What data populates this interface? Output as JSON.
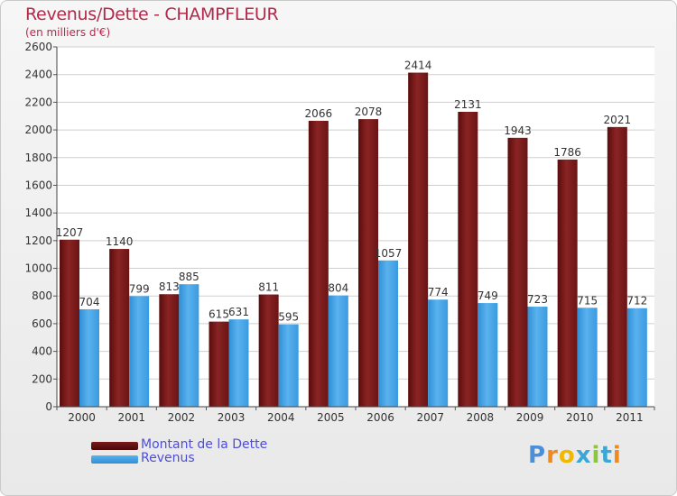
{
  "title": "Revenus/Dette - CHAMPFLEUR",
  "subtitle": "(en milliers d'€)",
  "legend": {
    "debt_label": "Montant de la Dette",
    "revenue_label": "Revenus"
  },
  "logo": "Proxiti",
  "colors": {
    "debt": "#7a1a1a",
    "revenue": "#3f9ee0",
    "title": "#b22a4a",
    "legend_text": "#4d4dd8"
  },
  "chart_data": {
    "type": "bar",
    "title": "Revenus/Dette - CHAMPFLEUR",
    "ylabel": "(en milliers d'€)",
    "xlabel": "",
    "categories": [
      "2000",
      "2001",
      "2002",
      "2003",
      "2004",
      "2005",
      "2006",
      "2007",
      "2008",
      "2009",
      "2010",
      "2011"
    ],
    "series": [
      {
        "name": "Montant de la Dette",
        "values": [
          1207,
          1140,
          813,
          615,
          811,
          2066,
          2078,
          2414,
          2131,
          1943,
          1786,
          2021
        ]
      },
      {
        "name": "Revenus",
        "values": [
          704,
          799,
          885,
          631,
          595,
          804,
          1057,
          774,
          749,
          723,
          715,
          712
        ]
      }
    ],
    "ylim": [
      0,
      2600
    ],
    "yticks": [
      0,
      200,
      400,
      600,
      800,
      1000,
      1200,
      1400,
      1600,
      1800,
      2000,
      2200,
      2400,
      2600
    ],
    "grid": true,
    "legend_position": "bottom-left"
  }
}
